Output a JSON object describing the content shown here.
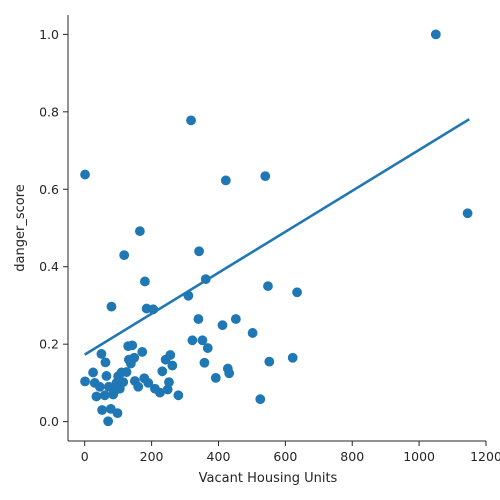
{
  "chart_data": {
    "type": "scatter",
    "xlabel": "Vacant Housing Units",
    "ylabel": "danger_score",
    "xlim": [
      -50,
      1200
    ],
    "ylim": [
      -0.05,
      1.05
    ],
    "x_ticks": [
      0,
      200,
      400,
      600,
      800,
      1000,
      1200
    ],
    "y_ticks": [
      0.0,
      0.2,
      0.4,
      0.6,
      0.8,
      1.0
    ],
    "x_tick_labels": [
      "0",
      "200",
      "400",
      "600",
      "800",
      "1000",
      "1200"
    ],
    "y_tick_labels": [
      "0.0",
      "0.2",
      "0.4",
      "0.6",
      "0.8",
      "1.0"
    ],
    "grid": false,
    "point_color": "#1f77b4",
    "line_color": "#1f77b4",
    "regression_line": {
      "x": [
        0,
        1150
      ],
      "y": [
        0.173,
        0.781
      ]
    },
    "points": [
      {
        "x": 1,
        "y": 0.638
      },
      {
        "x": 1,
        "y": 0.104
      },
      {
        "x": 25,
        "y": 0.127
      },
      {
        "x": 30,
        "y": 0.1
      },
      {
        "x": 35,
        "y": 0.065
      },
      {
        "x": 45,
        "y": 0.09
      },
      {
        "x": 50,
        "y": 0.175
      },
      {
        "x": 52,
        "y": 0.03
      },
      {
        "x": 60,
        "y": 0.068
      },
      {
        "x": 62,
        "y": 0.153
      },
      {
        "x": 65,
        "y": 0.118
      },
      {
        "x": 70,
        "y": 0.001
      },
      {
        "x": 72,
        "y": 0.09
      },
      {
        "x": 78,
        "y": 0.033
      },
      {
        "x": 80,
        "y": 0.297
      },
      {
        "x": 85,
        "y": 0.07
      },
      {
        "x": 90,
        "y": 0.08
      },
      {
        "x": 95,
        "y": 0.1
      },
      {
        "x": 98,
        "y": 0.022
      },
      {
        "x": 100,
        "y": 0.117
      },
      {
        "x": 105,
        "y": 0.085
      },
      {
        "x": 110,
        "y": 0.127
      },
      {
        "x": 115,
        "y": 0.102
      },
      {
        "x": 118,
        "y": 0.43
      },
      {
        "x": 125,
        "y": 0.128
      },
      {
        "x": 130,
        "y": 0.195
      },
      {
        "x": 132,
        "y": 0.16
      },
      {
        "x": 138,
        "y": 0.15
      },
      {
        "x": 142,
        "y": 0.197
      },
      {
        "x": 148,
        "y": 0.165
      },
      {
        "x": 150,
        "y": 0.105
      },
      {
        "x": 160,
        "y": 0.09
      },
      {
        "x": 165,
        "y": 0.492
      },
      {
        "x": 172,
        "y": 0.18
      },
      {
        "x": 178,
        "y": 0.112
      },
      {
        "x": 180,
        "y": 0.362
      },
      {
        "x": 185,
        "y": 0.292
      },
      {
        "x": 190,
        "y": 0.1
      },
      {
        "x": 205,
        "y": 0.29
      },
      {
        "x": 210,
        "y": 0.085
      },
      {
        "x": 225,
        "y": 0.075
      },
      {
        "x": 232,
        "y": 0.13
      },
      {
        "x": 242,
        "y": 0.16
      },
      {
        "x": 248,
        "y": 0.083
      },
      {
        "x": 252,
        "y": 0.102
      },
      {
        "x": 256,
        "y": 0.172
      },
      {
        "x": 262,
        "y": 0.145
      },
      {
        "x": 280,
        "y": 0.068
      },
      {
        "x": 310,
        "y": 0.325
      },
      {
        "x": 318,
        "y": 0.778
      },
      {
        "x": 322,
        "y": 0.21
      },
      {
        "x": 340,
        "y": 0.265
      },
      {
        "x": 342,
        "y": 0.44
      },
      {
        "x": 352,
        "y": 0.21
      },
      {
        "x": 358,
        "y": 0.152
      },
      {
        "x": 362,
        "y": 0.368
      },
      {
        "x": 368,
        "y": 0.19
      },
      {
        "x": 392,
        "y": 0.113
      },
      {
        "x": 412,
        "y": 0.249
      },
      {
        "x": 422,
        "y": 0.623
      },
      {
        "x": 428,
        "y": 0.137
      },
      {
        "x": 432,
        "y": 0.125
      },
      {
        "x": 452,
        "y": 0.265
      },
      {
        "x": 502,
        "y": 0.229
      },
      {
        "x": 525,
        "y": 0.058
      },
      {
        "x": 540,
        "y": 0.634
      },
      {
        "x": 548,
        "y": 0.35
      },
      {
        "x": 552,
        "y": 0.155
      },
      {
        "x": 622,
        "y": 0.165
      },
      {
        "x": 635,
        "y": 0.334
      },
      {
        "x": 1050,
        "y": 1.0
      },
      {
        "x": 1145,
        "y": 0.538
      }
    ]
  }
}
